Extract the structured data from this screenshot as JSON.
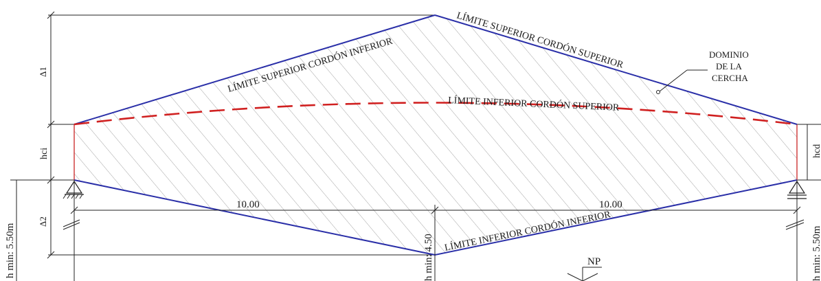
{
  "labels": {
    "upper_chord_top_limit": "LÍMITE SUPERIOR CORDÓN SUPERIOR",
    "upper_chord_bottom_limit": "LÍMITE INFERIOR CORDÓN SUPERIOR",
    "lower_chord_top_limit": "LÍMITE SUPERIOR CORDÓN INFERIOR",
    "lower_chord_bottom_limit": "LÍMITE INFERIOR CORDÓN INFERIOR",
    "domain_line1": "DOMINIO",
    "domain_line2": "DE LA",
    "domain_line3": "CERCHA"
  },
  "dimensions": {
    "delta1": "Δ1",
    "delta2": "Δ2",
    "hci": "hci",
    "hcd": "hcd",
    "span_left": "10.00",
    "span_right": "10.00",
    "h_min_left": "h min: 5.50m",
    "h_min_center": "h min: 4.50",
    "h_min_right": "h min: 5.50m"
  },
  "markers": {
    "level": "NP"
  },
  "colors": {
    "limit_blue": "#2a2fa8",
    "limit_red_dash": "#d02020",
    "accent_red": "#d04040",
    "hatch": "#9a9a9a",
    "line": "#222222"
  }
}
